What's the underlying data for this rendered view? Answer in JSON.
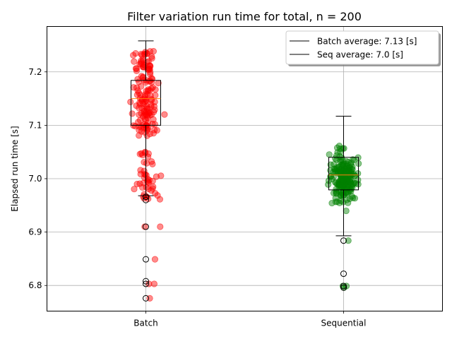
{
  "chart_data": {
    "type": "box",
    "title": "Filter variation run time for total, n = 200",
    "xlabel": "",
    "ylabel": "Elapsed run time [s]",
    "ylim": [
      6.752,
      7.285
    ],
    "yticks": [
      "6.8",
      "6.9",
      "7.0",
      "7.1",
      "7.2"
    ],
    "grid": true,
    "legend_position": "top-right",
    "categories": [
      "Batch",
      "Sequential"
    ],
    "legend": [
      {
        "label": "Batch average: 7.13 [s]",
        "color": "#000000"
      },
      {
        "label": "Seq average: 7.0 [s]",
        "color": "#000000"
      }
    ],
    "series": [
      {
        "name": "Batch",
        "color": "#ff0000",
        "box": {
          "whisker_low": 6.968,
          "q1": 7.1,
          "median": 7.15,
          "q3": 7.184,
          "whisker_high": 7.258
        },
        "outliers": [
          6.966,
          6.96,
          6.91,
          6.849,
          6.808,
          6.803,
          6.776
        ],
        "points_summary": {
          "count": 200,
          "cluster_high": [
            7.08,
            7.24
          ],
          "cluster_low": [
            6.96,
            7.07
          ]
        }
      },
      {
        "name": "Sequential",
        "color": "#008000",
        "box": {
          "whisker_low": 6.893,
          "q1": 6.979,
          "median": 7.007,
          "q3": 7.04,
          "whisker_high": 7.117
        },
        "outliers": [
          6.884,
          6.822,
          6.799,
          6.796
        ],
        "points_summary": {
          "count": 200,
          "cluster": [
            6.89,
            7.12
          ]
        }
      }
    ]
  }
}
